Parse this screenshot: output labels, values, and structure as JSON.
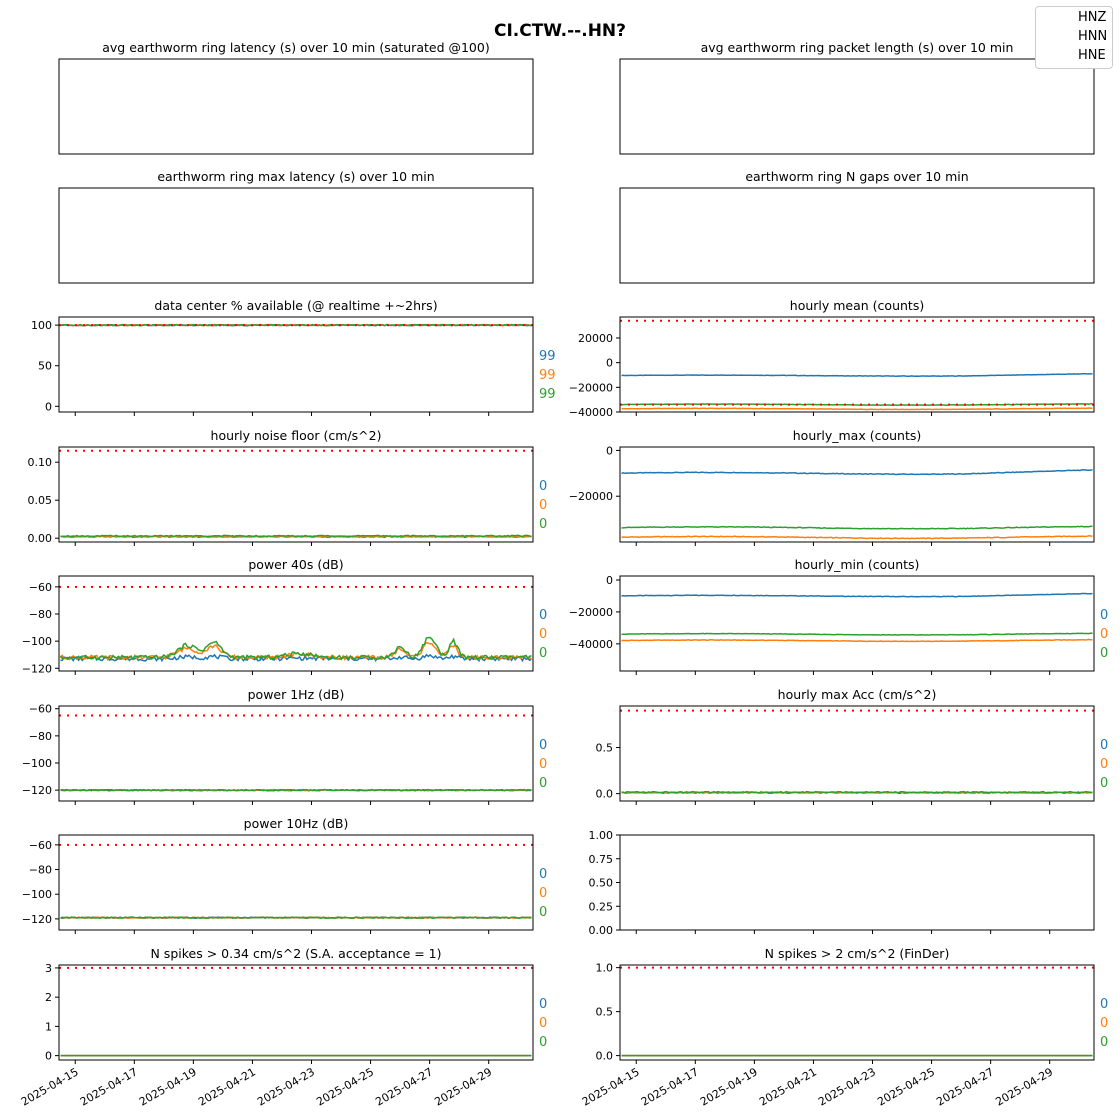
{
  "figure": {
    "suptitle": "CI.CTW.--.HN?",
    "legend": [
      "HNZ",
      "HNN",
      "HNE"
    ],
    "colors": {
      "HNZ": "#1f77b4",
      "HNN": "#ff7f0e",
      "HNE": "#2ca02c",
      "threshold": "#ff0000"
    },
    "x_ticks": [
      "2025-04-15",
      "2025-04-17",
      "2025-04-19",
      "2025-04-21",
      "2025-04-23",
      "2025-04-25",
      "2025-04-27",
      "2025-04-29"
    ],
    "x_range_days": [
      14.45,
      30.5
    ]
  },
  "chart_data": [
    {
      "id": "avg_latency",
      "type": "line",
      "title": "avg earthworm ring latency (s)   over 10 min (saturated @100)",
      "empty": true
    },
    {
      "id": "packet_length",
      "type": "line",
      "title": "avg earthworm ring packet length (s)   over 10 min",
      "empty": true
    },
    {
      "id": "max_latency",
      "type": "line",
      "title": "earthworm ring max latency (s)   over 10 min",
      "empty": true
    },
    {
      "id": "n_gaps",
      "type": "line",
      "title": "earthworm ring N gaps   over 10 min",
      "empty": true
    },
    {
      "id": "availability",
      "type": "line",
      "title": "data center % available (@ realtime +~2hrs)",
      "ylim": [
        -7,
        110
      ],
      "yticks": [
        "0",
        "50",
        "100"
      ],
      "threshold": 100,
      "series": [
        {
          "name": "HNZ",
          "level": 100
        },
        {
          "name": "HNN",
          "level": 100
        },
        {
          "name": "HNE",
          "level": 100
        }
      ],
      "annotations": [
        "99",
        "99",
        "99"
      ]
    },
    {
      "id": "hourly_mean",
      "type": "line",
      "title": "hourly mean (counts)",
      "ylim": [
        -40000,
        37000
      ],
      "yticks": [
        "−40000",
        "−20000",
        "0",
        "20000"
      ],
      "threshold": 34000,
      "threshold2": -34000,
      "series": [
        {
          "name": "HNZ",
          "level": -10500
        },
        {
          "name": "HNN",
          "level": -37500
        },
        {
          "name": "HNE",
          "level": -34000
        }
      ]
    },
    {
      "id": "noise_floor",
      "type": "line",
      "title": "hourly noise floor (cm/s^2)",
      "ylim": [
        -0.005,
        0.12
      ],
      "yticks": [
        "0.00",
        "0.05",
        "0.10"
      ],
      "threshold": 0.115,
      "series": [
        {
          "name": "HNZ",
          "level": 0.002
        },
        {
          "name": "HNN",
          "level": 0.002
        },
        {
          "name": "HNE",
          "level": 0.003
        }
      ],
      "annotations": [
        "0",
        "0",
        "0"
      ]
    },
    {
      "id": "hourly_max",
      "type": "line",
      "title": "hourly_max (counts)",
      "ylim": [
        -40000,
        1500
      ],
      "yticks": [
        "−20000",
        "0"
      ],
      "series": [
        {
          "name": "HNZ",
          "level": -10000
        },
        {
          "name": "HNN",
          "level": -38000
        },
        {
          "name": "HNE",
          "level": -33800
        }
      ]
    },
    {
      "id": "power_40s",
      "type": "line",
      "title": "power 40s (dB)",
      "ylim": [
        -122,
        -52
      ],
      "yticks": [
        "−120",
        "−100",
        "−80",
        "−60"
      ],
      "threshold": -60,
      "series": [
        {
          "name": "HNZ",
          "level": -113
        },
        {
          "name": "HNN",
          "level": -112
        },
        {
          "name": "HNE",
          "level": -112
        }
      ],
      "annotations": [
        "0",
        "0",
        "0"
      ]
    },
    {
      "id": "hourly_min",
      "type": "line",
      "title": "hourly_min (counts)",
      "ylim": [
        -57000,
        2500
      ],
      "yticks": [
        "−40000",
        "−20000",
        "0"
      ],
      "series": [
        {
          "name": "HNZ",
          "level": -10000
        },
        {
          "name": "HNN",
          "level": -38000
        },
        {
          "name": "HNE",
          "level": -34000
        }
      ],
      "annotations": [
        "0",
        "0",
        "0"
      ]
    },
    {
      "id": "power_1hz",
      "type": "line",
      "title": "power 1Hz (dB)",
      "ylim": [
        -128,
        -58
      ],
      "yticks": [
        "−120",
        "−100",
        "−80",
        "−60"
      ],
      "threshold": -65,
      "series": [
        {
          "name": "HNZ",
          "level": -120
        },
        {
          "name": "HNN",
          "level": -120
        },
        {
          "name": "HNE",
          "level": -120
        }
      ],
      "annotations": [
        "0",
        "0",
        "0"
      ]
    },
    {
      "id": "max_acc",
      "type": "line",
      "title": "hourly max Acc (cm/s^2)",
      "ylim": [
        -0.08,
        0.95
      ],
      "yticks": [
        "0.0",
        "0.5"
      ],
      "threshold": 0.9,
      "series": [
        {
          "name": "HNZ",
          "level": 0.01
        },
        {
          "name": "HNN",
          "level": 0.01
        },
        {
          "name": "HNE",
          "level": 0.015
        }
      ],
      "annotations": [
        "0",
        "0",
        "0"
      ]
    },
    {
      "id": "power_10hz",
      "type": "line",
      "title": "power 10Hz (dB)",
      "ylim": [
        -129,
        -52
      ],
      "yticks": [
        "−120",
        "−100",
        "−80",
        "−60"
      ],
      "threshold": -60,
      "series": [
        {
          "name": "HNZ",
          "level": -119
        },
        {
          "name": "HNN",
          "level": -119
        },
        {
          "name": "HNE",
          "level": -119
        }
      ],
      "annotations": [
        "0",
        "0",
        "0"
      ]
    },
    {
      "id": "empty_panel",
      "type": "line",
      "title": "",
      "ylim": [
        0,
        1
      ],
      "yticks": [
        "0.00",
        "0.25",
        "0.50",
        "0.75",
        "1.00"
      ],
      "empty": true
    },
    {
      "id": "spikes_034",
      "type": "line",
      "title": "N spikes > 0.34 cm/s^2 (S.A. acceptance = 1)",
      "ylim": [
        -0.15,
        3.1
      ],
      "yticks": [
        "0",
        "1",
        "2",
        "3"
      ],
      "threshold": 3,
      "series": [
        {
          "name": "HNZ",
          "level": 0
        },
        {
          "name": "HNN",
          "level": 0
        },
        {
          "name": "HNE",
          "level": 0
        }
      ],
      "annotations": [
        "0",
        "0",
        "0"
      ],
      "show_xticks": true
    },
    {
      "id": "spikes_2",
      "type": "line",
      "title": "N spikes > 2 cm/s^2 (FinDer)",
      "ylim": [
        -0.05,
        1.03
      ],
      "yticks": [
        "0.0",
        "0.5",
        "1.0"
      ],
      "threshold": 1,
      "series": [
        {
          "name": "HNZ",
          "level": 0
        },
        {
          "name": "HNN",
          "level": 0
        },
        {
          "name": "HNE",
          "level": 0
        }
      ],
      "annotations": [
        "0",
        "0",
        "0"
      ],
      "show_xticks": true
    }
  ]
}
